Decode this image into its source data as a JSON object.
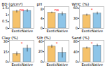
{
  "chart_data": [
    {
      "type": "bar",
      "title": "BD (g/cm³)",
      "categories": [
        "Exotic",
        "Native"
      ],
      "values": [
        1.25,
        1.3
      ],
      "errors": [
        0.1,
        0.1
      ],
      "colors": [
        "#f5c26b",
        "#8ec5e8"
      ],
      "ylim": [
        0,
        1.6
      ],
      "yticks": [
        0,
        0.5,
        1,
        1.5
      ],
      "annotation": "ns"
    },
    {
      "type": "bar",
      "title": "pH",
      "categories": [
        "Exotic",
        "Native"
      ],
      "values": [
        6.5,
        6.0
      ],
      "errors": [
        0.3,
        0.8
      ],
      "colors": [
        "#f5c26b",
        "#8ec5e8"
      ],
      "ylim": [
        0,
        9
      ],
      "yticks": [
        0,
        4,
        8
      ],
      "annotation": "ns"
    },
    {
      "type": "bar",
      "title": "WHC (%)",
      "categories": [
        "Exotic",
        "Native"
      ],
      "values": [
        40,
        45
      ],
      "errors": [
        3,
        4
      ],
      "colors": [
        "#f5c26b",
        "#8ec5e8"
      ],
      "ylim": [
        0,
        65
      ],
      "yticks": [
        0,
        30,
        60
      ],
      "annotation": "*"
    },
    {
      "type": "bar",
      "title": "Clay (%)",
      "categories": [
        "Exotic",
        "Native"
      ],
      "values": [
        12,
        20
      ],
      "errors": [
        3,
        5
      ],
      "colors": [
        "#f5c26b",
        "#8ec5e8"
      ],
      "ylim": [
        0,
        32
      ],
      "yticks": [
        0,
        15,
        30
      ],
      "annotation": "*"
    },
    {
      "type": "bar",
      "title": "Silt (%)",
      "categories": [
        "Exotic",
        "Native"
      ],
      "values": [
        30,
        18
      ],
      "errors": [
        3,
        10
      ],
      "colors": [
        "#f5c26b",
        "#8ec5e8"
      ],
      "ylim": [
        0,
        42
      ],
      "yticks": [
        0,
        20,
        40
      ],
      "annotation": "*"
    },
    {
      "type": "bar",
      "title": "Sand (%)",
      "categories": [
        "Exotic",
        "Native"
      ],
      "values": [
        55,
        65
      ],
      "errors": [
        4,
        5
      ],
      "colors": [
        "#f5c26b",
        "#8ec5e8"
      ],
      "ylim": [
        0,
        85
      ],
      "yticks": [
        0,
        40,
        80
      ],
      "annotation": "*"
    }
  ]
}
